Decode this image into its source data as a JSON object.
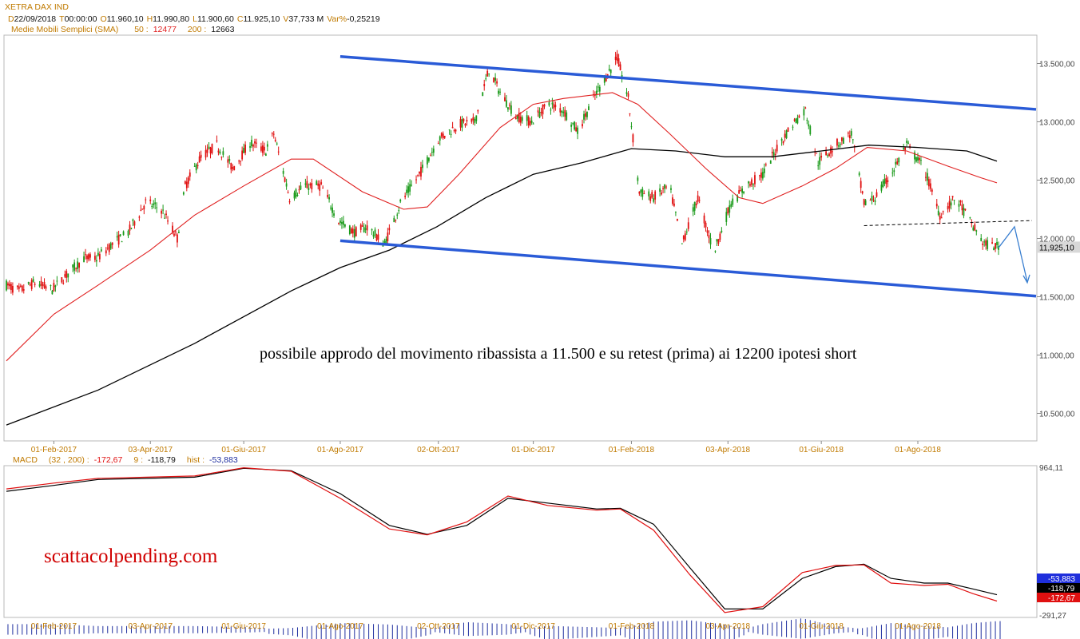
{
  "header": {
    "instrument": "XETRA DAX IND",
    "items": [
      {
        "key": "D",
        "val": "22/09/2018"
      },
      {
        "key": "T",
        "val": "00:00:00"
      },
      {
        "key": "O",
        "val": "11.960,10"
      },
      {
        "key": "H",
        "val": "11.990,80"
      },
      {
        "key": "L",
        "val": "11.900,60"
      },
      {
        "key": "C",
        "val": "11.925,10"
      },
      {
        "key": "V",
        "val": "37,733 M"
      },
      {
        "key": "Var%",
        "val": "-0,25219"
      }
    ],
    "sma": {
      "label": "Medie Mobili Semplici (SMA)",
      "p1": "50 :",
      "v1": "12477",
      "p2": "200 :",
      "v2": "12663"
    }
  },
  "colors": {
    "bull": "#1a9a1a",
    "bear": "#e01010",
    "sma50": "#e02020",
    "sma200": "#000000",
    "channel": "#2a5bd7",
    "axis_text": "#333333",
    "tick_date": "#c07a00",
    "arrow": "#3a7fd0",
    "macd_hist": "#1f2f9f",
    "annotation_red": "#d00000"
  },
  "chart_data": [
    {
      "type": "candlestick",
      "title": "XETRA DAX IND",
      "ylim": [
        10400,
        13700
      ],
      "x_range": [
        "2017-01-01",
        "2018-09-22"
      ],
      "x_ticks": [
        "01-Feb-2017",
        "03-Apr-2017",
        "01-Giu-2017",
        "01-Ago-2017",
        "02-Ott-2017",
        "01-Dic-2017",
        "01-Feb-2018",
        "03-Apr-2018",
        "01-Giu-2018",
        "01-Ago-2018"
      ],
      "y_ticks": [
        {
          "v": 10500,
          "label": "10.500,00"
        },
        {
          "v": 11000,
          "label": "11.000,00"
        },
        {
          "v": 11500,
          "label": "11.500,00"
        },
        {
          "v": 12000,
          "label": "12.000,00"
        },
        {
          "v": 12500,
          "label": "12.500,00"
        },
        {
          "v": 13000,
          "label": "13.000,00"
        },
        {
          "v": 13500,
          "label": "13.500,00"
        }
      ],
      "last_price": {
        "v": 11925.1,
        "label": "11,925,10"
      },
      "close_path": [
        [
          "2017-01-02",
          11600
        ],
        [
          "2017-01-10",
          11550
        ],
        [
          "2017-01-20",
          11620
        ],
        [
          "2017-01-31",
          11560
        ],
        [
          "2017-02-10",
          11700
        ],
        [
          "2017-02-20",
          11830
        ],
        [
          "2017-02-28",
          11830
        ],
        [
          "2017-03-10",
          11950
        ],
        [
          "2017-03-20",
          12050
        ],
        [
          "2017-03-31",
          12310
        ],
        [
          "2017-04-10",
          12250
        ],
        [
          "2017-04-20",
          12000
        ],
        [
          "2017-04-25",
          12450
        ],
        [
          "2017-05-05",
          12700
        ],
        [
          "2017-05-15",
          12800
        ],
        [
          "2017-05-25",
          12600
        ],
        [
          "2017-06-05",
          12820
        ],
        [
          "2017-06-15",
          12750
        ],
        [
          "2017-06-20",
          12900
        ],
        [
          "2017-06-30",
          12350
        ],
        [
          "2017-07-10",
          12450
        ],
        [
          "2017-07-20",
          12450
        ],
        [
          "2017-07-31",
          12150
        ],
        [
          "2017-08-10",
          12050
        ],
        [
          "2017-08-18",
          12100
        ],
        [
          "2017-08-29",
          11950
        ],
        [
          "2017-09-08",
          12300
        ],
        [
          "2017-09-20",
          12550
        ],
        [
          "2017-10-02",
          12850
        ],
        [
          "2017-10-15",
          12980
        ],
        [
          "2017-10-25",
          13000
        ],
        [
          "2017-11-03",
          13450
        ],
        [
          "2017-11-10",
          13250
        ],
        [
          "2017-11-20",
          13050
        ],
        [
          "2017-11-30",
          13000
        ],
        [
          "2017-12-10",
          13150
        ],
        [
          "2017-12-20",
          13100
        ],
        [
          "2017-12-29",
          12920
        ],
        [
          "2018-01-10",
          13250
        ],
        [
          "2018-01-23",
          13550
        ],
        [
          "2018-01-30",
          13200
        ],
        [
          "2018-02-06",
          12400
        ],
        [
          "2018-02-15",
          12350
        ],
        [
          "2018-02-25",
          12450
        ],
        [
          "2018-03-05",
          11950
        ],
        [
          "2018-03-15",
          12350
        ],
        [
          "2018-03-25",
          11880
        ],
        [
          "2018-04-05",
          12300
        ],
        [
          "2018-04-15",
          12450
        ],
        [
          "2018-04-25",
          12550
        ],
        [
          "2018-05-05",
          12800
        ],
        [
          "2018-05-15",
          13000
        ],
        [
          "2018-05-22",
          13100
        ],
        [
          "2018-05-30",
          12650
        ],
        [
          "2018-06-10",
          12800
        ],
        [
          "2018-06-20",
          12900
        ],
        [
          "2018-06-28",
          12300
        ],
        [
          "2018-07-05",
          12350
        ],
        [
          "2018-07-15",
          12550
        ],
        [
          "2018-07-25",
          12800
        ],
        [
          "2018-08-05",
          12600
        ],
        [
          "2018-08-15",
          12200
        ],
        [
          "2018-08-25",
          12350
        ],
        [
          "2018-09-05",
          12100
        ],
        [
          "2018-09-12",
          11950
        ],
        [
          "2018-09-22",
          11925
        ]
      ],
      "series": [
        {
          "name": "SMA 50",
          "values": [
            [
              "2017-01-02",
              10950
            ],
            [
              "2017-02-01",
              11350
            ],
            [
              "2017-03-01",
              11600
            ],
            [
              "2017-04-03",
              11900
            ],
            [
              "2017-05-01",
              12200
            ],
            [
              "2017-06-01",
              12450
            ],
            [
              "2017-07-01",
              12680
            ],
            [
              "2017-07-15",
              12680
            ],
            [
              "2017-08-15",
              12400
            ],
            [
              "2017-09-10",
              12250
            ],
            [
              "2017-09-25",
              12270
            ],
            [
              "2017-10-15",
              12550
            ],
            [
              "2017-11-10",
              12950
            ],
            [
              "2017-12-01",
              13150
            ],
            [
              "2017-12-20",
              13200
            ],
            [
              "2018-01-20",
              13250
            ],
            [
              "2018-02-05",
              13150
            ],
            [
              "2018-02-25",
              12900
            ],
            [
              "2018-03-20",
              12600
            ],
            [
              "2018-04-10",
              12350
            ],
            [
              "2018-04-25",
              12300
            ],
            [
              "2018-05-20",
              12450
            ],
            [
              "2018-06-10",
              12600
            ],
            [
              "2018-06-30",
              12780
            ],
            [
              "2018-07-25",
              12750
            ],
            [
              "2018-08-20",
              12620
            ],
            [
              "2018-09-10",
              12520
            ],
            [
              "2018-09-20",
              12477
            ]
          ]
        },
        {
          "name": "SMA 200",
          "values": [
            [
              "2017-01-02",
              10400
            ],
            [
              "2017-03-01",
              10700
            ],
            [
              "2017-05-01",
              11100
            ],
            [
              "2017-07-01",
              11550
            ],
            [
              "2017-08-01",
              11750
            ],
            [
              "2017-09-01",
              11900
            ],
            [
              "2017-10-01",
              12100
            ],
            [
              "2017-11-01",
              12350
            ],
            [
              "2017-12-01",
              12550
            ],
            [
              "2018-01-01",
              12650
            ],
            [
              "2018-02-01",
              12770
            ],
            [
              "2018-03-01",
              12750
            ],
            [
              "2018-04-01",
              12700
            ],
            [
              "2018-05-01",
              12700
            ],
            [
              "2018-06-01",
              12750
            ],
            [
              "2018-07-01",
              12800
            ],
            [
              "2018-08-01",
              12780
            ],
            [
              "2018-09-01",
              12750
            ],
            [
              "2018-09-20",
              12663
            ]
          ]
        }
      ],
      "channel": {
        "upper": [
          [
            "2017-08-01",
            13560
          ],
          [
            "2018-09-22",
            13130
          ]
        ],
        "lower": [
          [
            "2017-08-01",
            11980
          ],
          [
            "2018-09-22",
            11530
          ]
        ]
      },
      "support_dashed": [
        [
          "2018-06-28",
          12110
        ],
        [
          "2018-09-22",
          12160
        ]
      ],
      "forecast_arrow": [
        [
          "2018-09-26",
          11920
        ],
        [
          "2018-09-29",
          12100
        ],
        [
          "2018-10-04",
          11600
        ]
      ],
      "annotation": "possibile approdo del movimento ribassista a 11.500 e su retest (prima) ai 12200 ipotesi short"
    },
    {
      "type": "line",
      "title": "MACD",
      "params": "(32 , 200) :",
      "macd_value": "-172,67",
      "signal_label": "9 :",
      "signal_value": "-118,79",
      "hist_label": "hist :",
      "hist_value": "-53,883",
      "ylim": [
        -291.27,
        964.11
      ],
      "y_ticks": [
        {
          "v": 964.11,
          "label": "964,11"
        },
        {
          "v": -291.27,
          "label": "-291,27"
        }
      ],
      "x_ticks": [
        "01-Feb-2017",
        "03-Apr-2017",
        "01-Giu-2017",
        "01-Ago-2017",
        "02-Ott-2017",
        "01-Dic-2017",
        "01-Feb-2018",
        "03-Apr-2018",
        "01-Giu-2018",
        "01-Ago-2018"
      ],
      "last_badges": [
        {
          "label": "-53,883",
          "bg": "#1f2fdc"
        },
        {
          "label": "-118,79",
          "bg": "#000000"
        },
        {
          "label": "-172,67",
          "bg": "#e01010"
        }
      ],
      "series": [
        {
          "name": "MACD",
          "values": [
            [
              "2017-01-02",
              780
            ],
            [
              "2017-02-01",
              830
            ],
            [
              "2017-03-01",
              870
            ],
            [
              "2017-04-01",
              880
            ],
            [
              "2017-05-01",
              890
            ],
            [
              "2017-06-01",
              960
            ],
            [
              "2017-07-01",
              930
            ],
            [
              "2017-08-01",
              700
            ],
            [
              "2017-09-01",
              440
            ],
            [
              "2017-09-25",
              390
            ],
            [
              "2017-10-20",
              500
            ],
            [
              "2017-11-15",
              720
            ],
            [
              "2017-12-10",
              640
            ],
            [
              "2018-01-10",
              600
            ],
            [
              "2018-01-25",
              610
            ],
            [
              "2018-02-15",
              430
            ],
            [
              "2018-03-10",
              50
            ],
            [
              "2018-04-01",
              -270
            ],
            [
              "2018-04-25",
              -220
            ],
            [
              "2018-05-20",
              70
            ],
            [
              "2018-06-10",
              130
            ],
            [
              "2018-06-28",
              135
            ],
            [
              "2018-07-15",
              -20
            ],
            [
              "2018-08-05",
              -40
            ],
            [
              "2018-08-20",
              -30
            ],
            [
              "2018-09-05",
              -110
            ],
            [
              "2018-09-20",
              -172.67
            ]
          ]
        },
        {
          "name": "Signal",
          "values": [
            [
              "2017-01-02",
              760
            ],
            [
              "2017-02-01",
              810
            ],
            [
              "2017-03-01",
              860
            ],
            [
              "2017-04-01",
              870
            ],
            [
              "2017-05-01",
              880
            ],
            [
              "2017-06-01",
              955
            ],
            [
              "2017-07-01",
              935
            ],
            [
              "2017-08-01",
              740
            ],
            [
              "2017-09-01",
              470
            ],
            [
              "2017-09-25",
              395
            ],
            [
              "2017-10-20",
              470
            ],
            [
              "2017-11-15",
              700
            ],
            [
              "2017-12-10",
              660
            ],
            [
              "2018-01-10",
              610
            ],
            [
              "2018-01-25",
              615
            ],
            [
              "2018-02-15",
              480
            ],
            [
              "2018-03-10",
              110
            ],
            [
              "2018-04-01",
              -240
            ],
            [
              "2018-04-25",
              -240
            ],
            [
              "2018-05-20",
              20
            ],
            [
              "2018-06-10",
              120
            ],
            [
              "2018-06-28",
              140
            ],
            [
              "2018-07-15",
              20
            ],
            [
              "2018-08-05",
              -20
            ],
            [
              "2018-08-20",
              -20
            ],
            [
              "2018-09-05",
              -70
            ],
            [
              "2018-09-20",
              -118.79
            ]
          ]
        }
      ],
      "watermark": "scattacolpending.com"
    }
  ]
}
